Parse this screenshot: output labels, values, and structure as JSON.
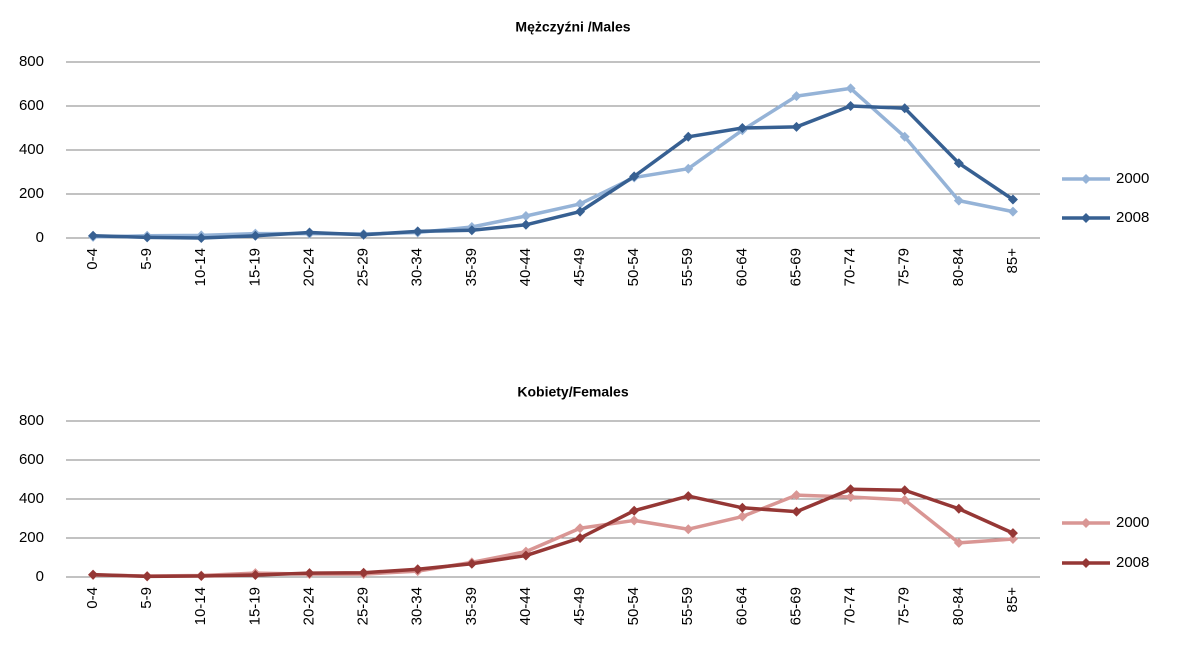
{
  "chart_data": [
    {
      "type": "line",
      "title": "Mężczyźni /Males",
      "categories": [
        "0-4",
        "5-9",
        "10-14",
        "15-19",
        "20-24",
        "25-29",
        "30-34",
        "35-39",
        "40-44",
        "45-49",
        "50-54",
        "55-59",
        "60-64",
        "65-69",
        "70-74",
        "75-79",
        "80-84",
        "85+"
      ],
      "series": [
        {
          "name": "2000",
          "color": "#95b3d7",
          "values": [
            5,
            10,
            12,
            20,
            20,
            18,
            25,
            50,
            100,
            155,
            275,
            315,
            490,
            645,
            680,
            460,
            170,
            120
          ]
        },
        {
          "name": "2008",
          "color": "#376092",
          "values": [
            10,
            3,
            0,
            10,
            25,
            15,
            30,
            35,
            60,
            120,
            280,
            460,
            500,
            505,
            600,
            590,
            340,
            175
          ]
        }
      ],
      "ylim": [
        0,
        800
      ],
      "yticks": [
        0,
        200,
        400,
        600,
        800
      ],
      "grid": true,
      "legend": "right"
    },
    {
      "type": "line",
      "title": "Kobiety/Females",
      "categories": [
        "0-4",
        "5-9",
        "10-14",
        "15-19",
        "20-24",
        "25-29",
        "30-34",
        "35-39",
        "40-44",
        "45-49",
        "50-54",
        "55-59",
        "60-64",
        "65-69",
        "70-74",
        "75-79",
        "80-84",
        "85+"
      ],
      "series": [
        {
          "name": "2000",
          "color": "#d99694",
          "values": [
            10,
            5,
            8,
            20,
            15,
            15,
            30,
            75,
            130,
            250,
            290,
            245,
            310,
            420,
            410,
            395,
            175,
            195
          ]
        },
        {
          "name": "2008",
          "color": "#953735",
          "values": [
            12,
            3,
            5,
            10,
            20,
            22,
            40,
            68,
            110,
            200,
            340,
            415,
            355,
            335,
            450,
            445,
            350,
            225
          ]
        }
      ],
      "ylim": [
        0,
        800
      ],
      "yticks": [
        0,
        200,
        400,
        600,
        800
      ],
      "grid": true,
      "legend": "right"
    }
  ]
}
